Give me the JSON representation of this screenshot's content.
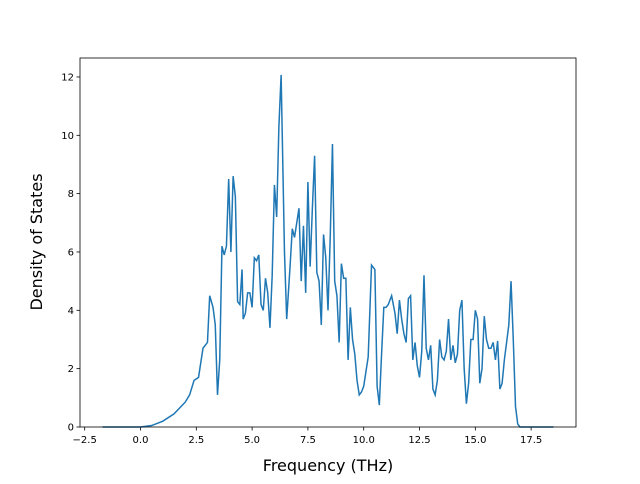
{
  "chart_data": {
    "type": "line",
    "xlabel": "Frequency (THz)",
    "ylabel": "Density of States",
    "color": "#1f77b4",
    "x": [
      -1.7,
      -1.0,
      -0.5,
      0.0,
      0.5,
      1.0,
      1.5,
      2.0,
      2.2,
      2.4,
      2.6,
      2.8,
      3.0,
      3.1,
      3.25,
      3.35,
      3.45,
      3.55,
      3.65,
      3.75,
      3.85,
      3.95,
      4.05,
      4.15,
      4.25,
      4.35,
      4.45,
      4.55,
      4.6,
      4.7,
      4.8,
      4.9,
      5.0,
      5.1,
      5.2,
      5.3,
      5.4,
      5.5,
      5.6,
      5.7,
      5.8,
      5.9,
      6.0,
      6.1,
      6.2,
      6.3,
      6.45,
      6.55,
      6.7,
      6.8,
      6.9,
      7.0,
      7.1,
      7.2,
      7.3,
      7.4,
      7.5,
      7.6,
      7.7,
      7.8,
      7.9,
      8.0,
      8.1,
      8.2,
      8.3,
      8.4,
      8.5,
      8.6,
      8.7,
      8.8,
      8.9,
      9.0,
      9.1,
      9.2,
      9.3,
      9.4,
      9.5,
      9.6,
      9.7,
      9.8,
      9.9,
      10.0,
      10.1,
      10.2,
      10.35,
      10.5,
      10.6,
      10.7,
      10.8,
      10.9,
      11.0,
      11.1,
      11.25,
      11.4,
      11.5,
      11.6,
      11.7,
      11.8,
      11.9,
      12.0,
      12.1,
      12.2,
      12.3,
      12.4,
      12.5,
      12.6,
      12.7,
      12.8,
      12.9,
      13.0,
      13.1,
      13.2,
      13.3,
      13.4,
      13.5,
      13.6,
      13.7,
      13.8,
      13.9,
      14.0,
      14.1,
      14.2,
      14.3,
      14.4,
      14.5,
      14.6,
      14.7,
      14.8,
      14.9,
      15.0,
      15.1,
      15.2,
      15.3,
      15.4,
      15.5,
      15.6,
      15.7,
      15.8,
      15.9,
      16.0,
      16.1,
      16.2,
      16.3,
      16.5,
      16.6,
      16.7,
      16.8,
      16.9,
      17.0,
      18.5
    ],
    "y": [
      0,
      0,
      0,
      0,
      0.05,
      0.2,
      0.45,
      0.85,
      1.1,
      1.6,
      1.7,
      2.7,
      2.9,
      4.5,
      4.1,
      3.5,
      1.1,
      2.3,
      6.2,
      5.9,
      6.2,
      8.5,
      6.0,
      8.6,
      7.9,
      4.3,
      4.2,
      5.4,
      3.7,
      3.9,
      4.6,
      4.6,
      4.1,
      5.8,
      5.7,
      5.9,
      4.2,
      4.0,
      5.1,
      4.6,
      3.4,
      5.2,
      8.3,
      7.2,
      10.3,
      12.07,
      6.0,
      3.7,
      5.5,
      6.8,
      6.5,
      7.0,
      7.5,
      5.0,
      6.9,
      4.6,
      8.4,
      5.5,
      7.5,
      9.3,
      5.3,
      5.0,
      3.5,
      6.6,
      5.8,
      4.0,
      6.5,
      9.7,
      5.0,
      4.5,
      2.9,
      5.6,
      5.1,
      5.1,
      2.3,
      4.1,
      3.0,
      2.5,
      1.6,
      1.1,
      1.2,
      1.4,
      1.9,
      2.4,
      5.55,
      5.4,
      1.4,
      0.75,
      2.5,
      4.1,
      4.1,
      4.2,
      4.5,
      3.9,
      3.2,
      4.35,
      3.7,
      3.2,
      2.9,
      4.4,
      4.5,
      2.3,
      2.9,
      2.1,
      1.7,
      2.6,
      5.2,
      2.7,
      2.3,
      2.8,
      1.3,
      1.1,
      1.6,
      3.0,
      2.4,
      2.3,
      2.6,
      3.7,
      2.3,
      2.8,
      2.2,
      2.5,
      4.0,
      4.35,
      2.0,
      0.8,
      1.5,
      3.0,
      3.0,
      4.0,
      3.7,
      1.5,
      2.0,
      3.8,
      3.0,
      2.7,
      2.7,
      2.9,
      2.3,
      2.95,
      1.3,
      1.5,
      2.3,
      3.5,
      5.0,
      3.0,
      0.7,
      0.1,
      0,
      0
    ],
    "xlim": [
      -2.71,
      19.51
    ],
    "ylim": [
      0,
      12.65
    ],
    "xticks": [
      {
        "value": -2.5,
        "label": "−2.5"
      },
      {
        "value": 0,
        "label": "0.0"
      },
      2.5,
      {
        "value": 5,
        "label": "5.0"
      },
      7.5,
      {
        "value": 10,
        "label": "10.0"
      },
      12.5,
      {
        "value": 15,
        "label": "15.0"
      },
      17.5
    ],
    "yticks": [
      0,
      2,
      4,
      6,
      8,
      10,
      12
    ]
  }
}
